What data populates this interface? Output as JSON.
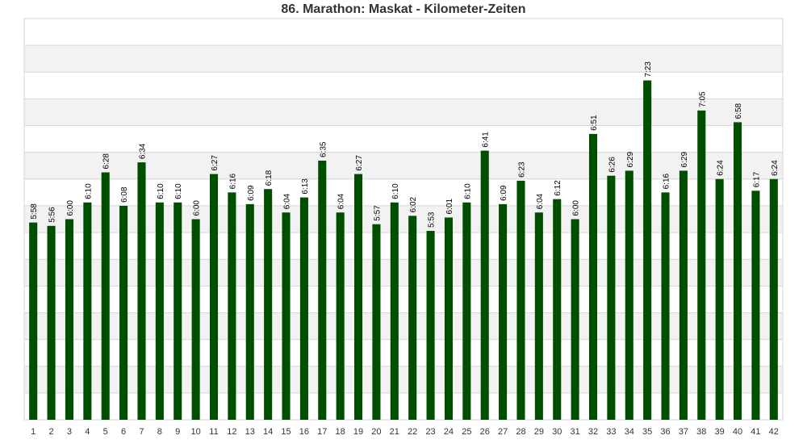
{
  "colors": {
    "bar": "#004f00",
    "band": "#f2f2f2",
    "grid": "#d6d6d6",
    "text": "#333333"
  },
  "chart_data": {
    "type": "bar",
    "title": "86. Marathon: Maskat - Kilometer-Zeiten",
    "xlabel": "",
    "ylabel": "",
    "y_unit": "seconds per km",
    "ylim": [
      240,
      480
    ],
    "grid": true,
    "legend": "none",
    "categories": [
      "1",
      "2",
      "3",
      "4",
      "5",
      "6",
      "7",
      "8",
      "9",
      "10",
      "11",
      "12",
      "13",
      "14",
      "15",
      "16",
      "17",
      "18",
      "19",
      "20",
      "21",
      "22",
      "23",
      "24",
      "25",
      "26",
      "27",
      "28",
      "29",
      "30",
      "31",
      "32",
      "33",
      "34",
      "35",
      "36",
      "37",
      "38",
      "39",
      "40",
      "41",
      "42"
    ],
    "values": [
      358,
      356,
      360,
      370,
      388,
      368,
      394,
      370,
      370,
      360,
      387,
      376,
      369,
      378,
      364,
      373,
      395,
      364,
      387,
      357,
      370,
      362,
      353,
      361,
      370,
      401,
      369,
      383,
      364,
      372,
      360,
      411,
      386,
      389,
      443,
      376,
      389,
      425,
      384,
      418,
      377,
      384
    ],
    "labels": [
      "5:58",
      "5:56",
      "6:00",
      "6:10",
      "6:28",
      "6:08",
      "6:34",
      "6:10",
      "6:10",
      "6:00",
      "6:27",
      "6:16",
      "6:09",
      "6:18",
      "6:04",
      "6:13",
      "6:35",
      "6:04",
      "6:27",
      "5:57",
      "6:10",
      "6:02",
      "5:53",
      "6:01",
      "6:10",
      "6:41",
      "6:09",
      "6:23",
      "6:04",
      "6:12",
      "6:00",
      "6:51",
      "6:26",
      "6:29",
      "7:23",
      "6:16",
      "6:29",
      "7:05",
      "6:24",
      "6:58",
      "6:17",
      "6:24"
    ]
  }
}
